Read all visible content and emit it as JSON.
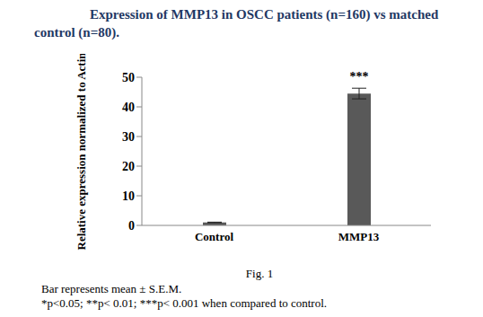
{
  "chart_data": {
    "type": "bar",
    "title": "Expression of MMP13 in OSCC patients (n=160) vs matched control (n=80).",
    "y_label": "Relative expression normalized to Actin",
    "categories": [
      "Control",
      "MMP13"
    ],
    "values": [
      1,
      44.5
    ],
    "errors": [
      0.1,
      1.8
    ],
    "color": "#595959",
    "ylim": [
      0,
      50
    ],
    "yticks": [
      0,
      10,
      20,
      30,
      40,
      50
    ],
    "grid": false,
    "annotations": [
      {
        "category": "MMP13",
        "text": "***"
      }
    ],
    "caption": "Fig. 1",
    "notes": [
      "Bar represents mean ± S.E.M.",
      "*p<0.05; **p< 0.01; ***p< 0.001 when compared to control."
    ]
  }
}
